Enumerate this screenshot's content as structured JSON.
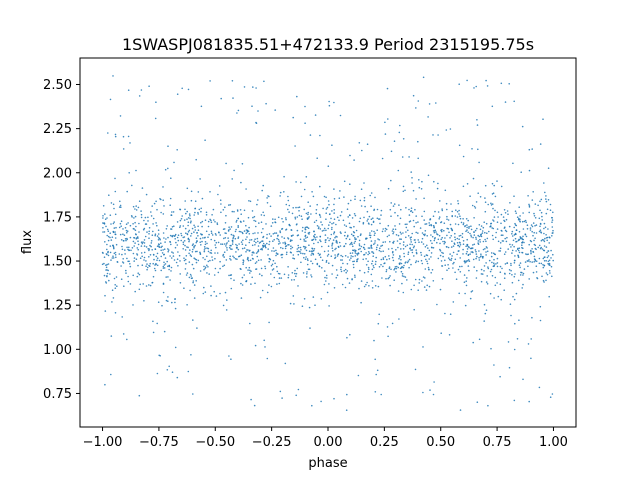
{
  "chart_data": {
    "type": "scatter",
    "title": "1SWASPJ081835.51+472133.9 Period 2315195.75s",
    "xlabel": "phase",
    "ylabel": "flux",
    "xlim": [
      -1.1,
      1.1
    ],
    "ylim": [
      0.56,
      2.65
    ],
    "x_ticks": [
      -1.0,
      -0.75,
      -0.5,
      -0.25,
      0.0,
      0.25,
      0.5,
      0.75,
      1.0
    ],
    "x_tick_labels": [
      "−1.00",
      "−0.75",
      "−0.50",
      "−0.25",
      "0.00",
      "0.25",
      "0.50",
      "0.75",
      "1.00"
    ],
    "y_ticks": [
      0.75,
      1.0,
      1.25,
      1.5,
      1.75,
      2.0,
      2.25,
      2.5
    ],
    "y_tick_labels": [
      "0.75",
      "1.00",
      "1.25",
      "1.50",
      "1.75",
      "2.00",
      "2.25",
      "2.50"
    ],
    "marker_color": "#1f77b4",
    "grid": false,
    "legend": "none",
    "distribution": {
      "phase_range": [
        -1.0,
        1.0
      ],
      "core_flux_range": [
        1.3,
        1.85
      ],
      "core_center": 1.6,
      "outlier_flux_range": [
        0.65,
        2.55
      ]
    }
  }
}
